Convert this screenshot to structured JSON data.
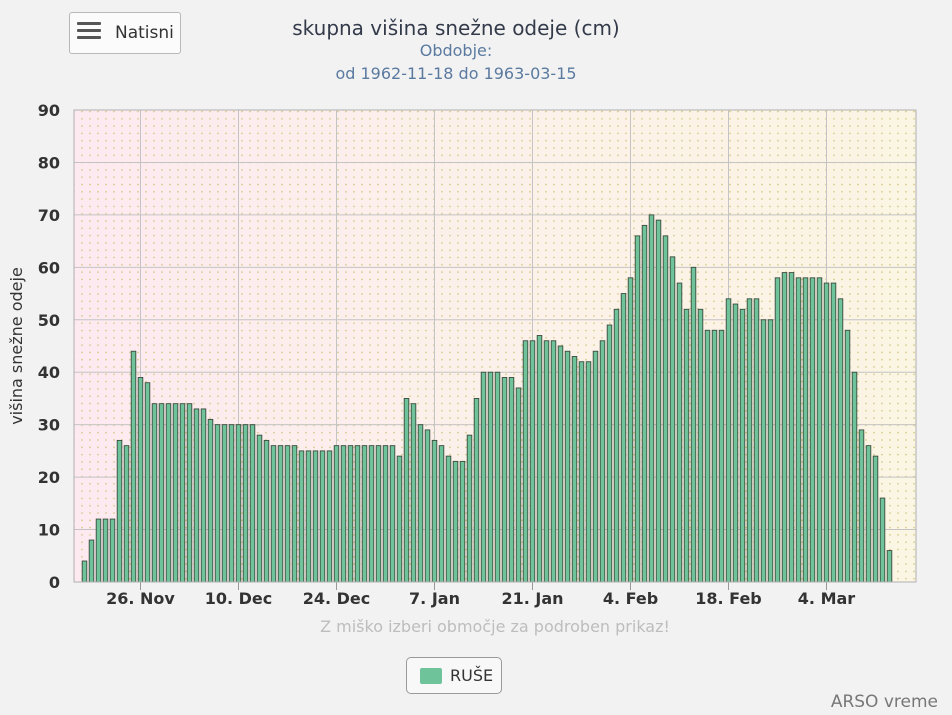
{
  "menu": {
    "print_label": "Natisni",
    "icon": "hamburger-menu-icon"
  },
  "chart_data": {
    "type": "bar",
    "title": "skupna višina snežne odeje (cm)",
    "subtitle_line1": "Obdobje:",
    "subtitle_line2": "od 1962-11-18 do 1963-03-15",
    "ylabel": "višina snežne odeje",
    "ylim": [
      0,
      90
    ],
    "yticks": [
      0,
      10,
      20,
      30,
      40,
      50,
      60,
      70,
      80,
      90
    ],
    "xticks": [
      {
        "label": "26. Nov",
        "date": "1962-11-26"
      },
      {
        "label": "10. Dec",
        "date": "1962-12-10"
      },
      {
        "label": "24. Dec",
        "date": "1962-12-24"
      },
      {
        "label": "7. Jan",
        "date": "1963-01-07"
      },
      {
        "label": "21. Jan",
        "date": "1963-01-21"
      },
      {
        "label": "4. Feb",
        "date": "1963-02-04"
      },
      {
        "label": "18. Feb",
        "date": "1963-02-18"
      },
      {
        "label": "4. Mar",
        "date": "1963-03-04"
      }
    ],
    "x_start": "1962-11-18",
    "x_end": "1963-03-15",
    "series": [
      {
        "name": "RUŠE",
        "color": "#6fc39a",
        "values": [
          4,
          8,
          12,
          12,
          12,
          27,
          26,
          44,
          39,
          38,
          34,
          34,
          34,
          34,
          34,
          34,
          33,
          33,
          31,
          30,
          30,
          30,
          30,
          30,
          30,
          28,
          27,
          26,
          26,
          26,
          26,
          25,
          25,
          25,
          25,
          25,
          26,
          26,
          26,
          26,
          26,
          26,
          26,
          26,
          26,
          24,
          35,
          34,
          30,
          29,
          27,
          26,
          24,
          23,
          23,
          28,
          35,
          40,
          40,
          40,
          39,
          39,
          37,
          46,
          46,
          47,
          46,
          46,
          45,
          44,
          43,
          42,
          42,
          44,
          46,
          49,
          52,
          55,
          58,
          66,
          68,
          70,
          69,
          66,
          62,
          57,
          52,
          60,
          52,
          48,
          48,
          48,
          54,
          53,
          52,
          54,
          54,
          50,
          50,
          58,
          59,
          59,
          58,
          58,
          58,
          58,
          57,
          57,
          54,
          48,
          40,
          29,
          26,
          24,
          16,
          6
        ]
      }
    ]
  },
  "hint": "Z miško izberi območje za podroben prikaz!",
  "legend": {
    "label": "RUŠE",
    "color": "#6fc39a"
  },
  "credit": "ARSO vreme"
}
